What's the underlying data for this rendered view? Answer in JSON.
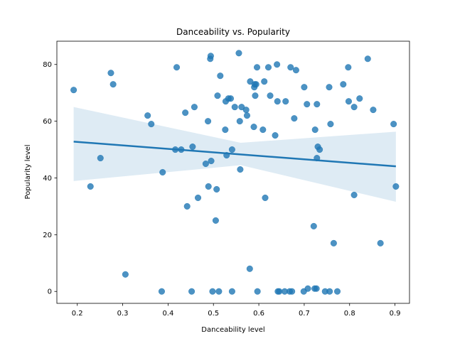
{
  "chart_data": {
    "type": "scatter",
    "title": "Danceability vs. Popularity",
    "xlabel": "Danceability level",
    "ylabel": "Popularity level",
    "xlim": [
      0.155,
      0.932
    ],
    "ylim": [
      -4.2,
      88.2
    ],
    "xticks": [
      0.2,
      0.3,
      0.4,
      0.5,
      0.6,
      0.7,
      0.8,
      0.9
    ],
    "xtick_labels": [
      "0.2",
      "0.3",
      "0.4",
      "0.5",
      "0.6",
      "0.7",
      "0.8",
      "0.9"
    ],
    "yticks": [
      0,
      20,
      40,
      60,
      80
    ],
    "ytick_labels": [
      "0",
      "20",
      "40",
      "60",
      "80"
    ],
    "point_color": "#1f77b4",
    "line_color": "#1f77b4",
    "band_color": "#1f77b4",
    "grid": false,
    "points": [
      [
        0.192,
        71
      ],
      [
        0.229,
        37
      ],
      [
        0.251,
        47
      ],
      [
        0.274,
        77
      ],
      [
        0.279,
        73
      ],
      [
        0.306,
        6
      ],
      [
        0.355,
        62
      ],
      [
        0.363,
        59
      ],
      [
        0.386,
        0
      ],
      [
        0.388,
        42
      ],
      [
        0.416,
        50
      ],
      [
        0.419,
        79
      ],
      [
        0.429,
        50
      ],
      [
        0.438,
        63
      ],
      [
        0.442,
        30
      ],
      [
        0.452,
        0
      ],
      [
        0.454,
        51
      ],
      [
        0.458,
        65
      ],
      [
        0.466,
        33
      ],
      [
        0.483,
        45
      ],
      [
        0.488,
        60
      ],
      [
        0.489,
        37
      ],
      [
        0.493,
        82
      ],
      [
        0.494,
        83
      ],
      [
        0.495,
        46
      ],
      [
        0.498,
        0
      ],
      [
        0.505,
        25
      ],
      [
        0.507,
        36
      ],
      [
        0.509,
        69
      ],
      [
        0.512,
        0
      ],
      [
        0.515,
        76
      ],
      [
        0.526,
        57
      ],
      [
        0.527,
        67
      ],
      [
        0.529,
        48
      ],
      [
        0.533,
        68
      ],
      [
        0.538,
        68
      ],
      [
        0.541,
        0
      ],
      [
        0.541,
        50
      ],
      [
        0.547,
        65
      ],
      [
        0.556,
        84
      ],
      [
        0.558,
        60
      ],
      [
        0.559,
        43
      ],
      [
        0.562,
        65
      ],
      [
        0.572,
        64
      ],
      [
        0.574,
        62
      ],
      [
        0.58,
        8
      ],
      [
        0.581,
        74
      ],
      [
        0.589,
        58
      ],
      [
        0.59,
        72
      ],
      [
        0.591,
        73
      ],
      [
        0.592,
        69
      ],
      [
        0.594,
        73
      ],
      [
        0.596,
        79
      ],
      [
        0.597,
        0
      ],
      [
        0.609,
        57
      ],
      [
        0.612,
        74
      ],
      [
        0.614,
        33
      ],
      [
        0.621,
        79
      ],
      [
        0.625,
        69
      ],
      [
        0.636,
        55
      ],
      [
        0.64,
        80
      ],
      [
        0.641,
        67
      ],
      [
        0.642,
        0
      ],
      [
        0.645,
        0
      ],
      [
        0.657,
        0
      ],
      [
        0.659,
        67
      ],
      [
        0.668,
        0
      ],
      [
        0.67,
        79
      ],
      [
        0.673,
        0
      ],
      [
        0.678,
        61
      ],
      [
        0.682,
        78
      ],
      [
        0.699,
        0
      ],
      [
        0.7,
        72
      ],
      [
        0.706,
        66
      ],
      [
        0.708,
        1
      ],
      [
        0.721,
        23
      ],
      [
        0.723,
        1
      ],
      [
        0.724,
        57
      ],
      [
        0.727,
        1
      ],
      [
        0.728,
        66
      ],
      [
        0.728,
        47
      ],
      [
        0.73,
        51
      ],
      [
        0.734,
        50
      ],
      [
        0.746,
        0
      ],
      [
        0.755,
        72
      ],
      [
        0.756,
        0
      ],
      [
        0.758,
        59
      ],
      [
        0.765,
        17
      ],
      [
        0.773,
        0
      ],
      [
        0.786,
        73
      ],
      [
        0.797,
        79
      ],
      [
        0.798,
        67
      ],
      [
        0.81,
        65
      ],
      [
        0.81,
        34
      ],
      [
        0.822,
        68
      ],
      [
        0.84,
        82
      ],
      [
        0.852,
        64
      ],
      [
        0.868,
        17
      ],
      [
        0.897,
        59
      ],
      [
        0.902,
        37
      ]
    ],
    "regression": {
      "x": [
        0.192,
        0.902
      ],
      "y": [
        52.8,
        44.1
      ],
      "ci_upper": [
        65.0,
        56.3
      ],
      "ci_lower": [
        38.9,
        31.6
      ],
      "ci_mid": {
        "x": 0.56,
        "upper": 52.4,
        "lower": 44.5
      }
    }
  }
}
